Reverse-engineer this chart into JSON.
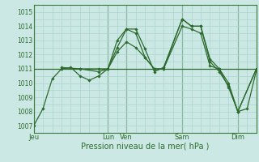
{
  "title": "Pression niveau de la mer( hPa )",
  "bg_color": "#cce8e4",
  "grid_color": "#aad4d0",
  "line_color": "#2d6a2d",
  "spine_color": "#3a7a3a",
  "ylim": [
    1006.5,
    1015.5
  ],
  "ytick_vals": [
    1007,
    1008,
    1009,
    1010,
    1011,
    1012,
    1013,
    1014,
    1015
  ],
  "day_labels": [
    "Jeu",
    "Lun",
    "Ven",
    "Sam",
    "Dim"
  ],
  "day_positions": [
    0,
    96,
    120,
    192,
    264
  ],
  "total_hours": 288,
  "lines": [
    {
      "x": [
        0,
        12,
        24,
        36,
        48,
        60,
        72,
        84,
        96,
        108,
        120,
        132,
        144,
        156,
        168,
        192,
        204,
        216,
        228,
        240,
        252,
        264,
        276,
        288
      ],
      "y": [
        1007.0,
        1008.2,
        1010.3,
        1011.0,
        1011.1,
        1010.5,
        1010.2,
        1010.5,
        1011.0,
        1012.5,
        1013.8,
        1013.8,
        1012.4,
        1010.8,
        1011.1,
        1014.5,
        1014.0,
        1014.0,
        1011.7,
        1011.0,
        1009.7,
        1008.0,
        1008.2,
        1010.9
      ],
      "markers": true
    },
    {
      "x": [
        36,
        60,
        84,
        96,
        108,
        120,
        132,
        144,
        156,
        168,
        192,
        204,
        216,
        228,
        240,
        252,
        264,
        288
      ],
      "y": [
        1011.0,
        1011.0,
        1010.8,
        1011.0,
        1013.0,
        1013.8,
        1013.5,
        1011.8,
        1011.0,
        1011.0,
        1014.5,
        1014.0,
        1014.0,
        1011.5,
        1010.8,
        1009.8,
        1008.0,
        1011.0
      ],
      "markers": true
    },
    {
      "x": [
        36,
        60,
        84,
        96,
        108,
        120,
        132,
        144,
        156,
        168,
        192,
        204,
        216,
        228,
        240,
        252,
        264,
        288
      ],
      "y": [
        1011.1,
        1011.0,
        1011.0,
        1011.0,
        1012.2,
        1012.9,
        1012.5,
        1011.8,
        1011.0,
        1011.0,
        1014.0,
        1013.8,
        1013.5,
        1011.2,
        1011.0,
        1010.0,
        1008.0,
        1011.0
      ],
      "markers": true
    },
    {
      "x": [
        0,
        288
      ],
      "y": [
        1011.0,
        1011.0
      ],
      "markers": false
    }
  ]
}
